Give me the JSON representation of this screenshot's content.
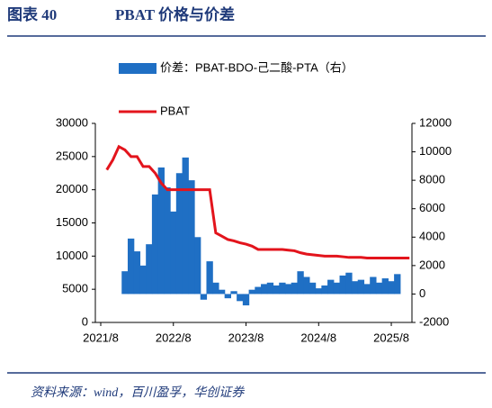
{
  "header": {
    "label": "图表 40",
    "title": "PBAT 价格与价差"
  },
  "chart_data": {
    "type": "bar-line",
    "categories": [
      "2021/8",
      null,
      null,
      null,
      null,
      null,
      null,
      null,
      null,
      null,
      null,
      null,
      "2022/8",
      null,
      null,
      null,
      null,
      null,
      null,
      null,
      null,
      null,
      null,
      null,
      "2023/8",
      null,
      null,
      null,
      null,
      null,
      null,
      null,
      null,
      null,
      null,
      null,
      "2024/8",
      null,
      null,
      null,
      null,
      null,
      null,
      null,
      null,
      null,
      null,
      null,
      "2025/8",
      null,
      null,
      null
    ],
    "series": [
      {
        "name": "价差：PBAT-BDO-己二酸-PTA（右）",
        "color": "#1f6fc4",
        "axis": "y2",
        "kind": "bar",
        "values": [
          null,
          null,
          null,
          null,
          1600,
          3900,
          3000,
          2000,
          3500,
          7000,
          8900,
          7500,
          5800,
          8500,
          9600,
          8000,
          4000,
          -400,
          2300,
          800,
          300,
          -300,
          200,
          -500,
          -800,
          300,
          500,
          700,
          800,
          600,
          800,
          700,
          800,
          1600,
          1200,
          800,
          400,
          600,
          1000,
          800,
          1300,
          1500,
          900,
          1000,
          700,
          1200,
          800,
          1100,
          900,
          1400,
          null,
          null
        ]
      },
      {
        "name": "PBAT",
        "color": "#e3141c",
        "kind": "line",
        "values": [
          null,
          23000,
          24500,
          26500,
          26000,
          25000,
          25000,
          23500,
          23500,
          22500,
          21000,
          20000,
          20000,
          20000,
          20000,
          20000,
          20000,
          20000,
          20000,
          13500,
          13000,
          12500,
          12300,
          12000,
          11800,
          11500,
          11000,
          11000,
          11000,
          11000,
          11000,
          10900,
          10800,
          10500,
          10300,
          10200,
          10100,
          10000,
          10000,
          10000,
          9900,
          9800,
          9800,
          9800,
          9700,
          9700,
          9700,
          9700,
          9700,
          9700,
          9700,
          9700
        ]
      }
    ],
    "ylim": [
      0,
      30000
    ],
    "yticks": [
      0,
      5000,
      10000,
      15000,
      20000,
      25000,
      30000
    ],
    "y2lim": [
      -2000,
      12000
    ],
    "y2ticks": [
      -2000,
      0,
      2000,
      4000,
      6000,
      8000,
      10000,
      12000
    ],
    "legend": "top"
  },
  "footer": {
    "source": "资料来源：wind，百川盈孚，华创证券"
  }
}
